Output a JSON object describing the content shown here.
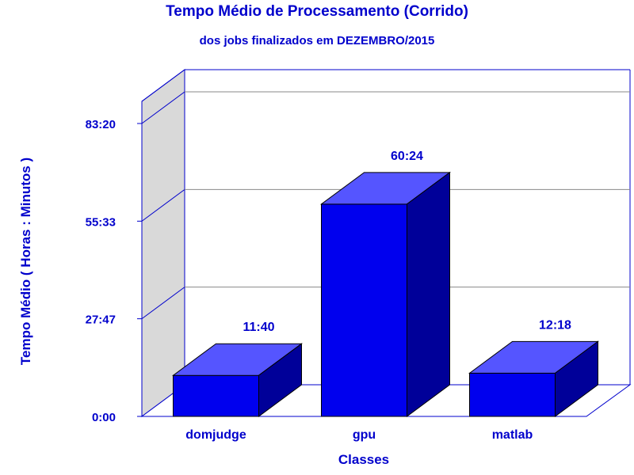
{
  "chart_data": {
    "type": "bar",
    "title": "Tempo Médio de Processamento (Corrido)",
    "subtitle": "dos jobs finalizados em DEZEMBRO/2015",
    "xlabel": "Classes",
    "ylabel": "Tempo Médio ( Horas : Minutos )",
    "categories": [
      "domjudge",
      "gpu",
      "matlab"
    ],
    "values_minutes": [
      700,
      3624,
      738
    ],
    "data_labels": [
      "11:40",
      "60:24",
      "12:18"
    ],
    "yticks_minutes": [
      0,
      1667,
      3333,
      5000
    ],
    "ytick_labels": [
      "0:00",
      "27:47",
      "55:33",
      "83:20"
    ],
    "ylim_minutes": [
      0,
      5000
    ],
    "grid": true,
    "bar_color": "#0000ee",
    "bar_top_color": "#5555ff",
    "bar_side_color": "#000099",
    "text_color": "#0000cc",
    "axis_color": "#0000cc",
    "wall_color": "#d9d9d9"
  }
}
